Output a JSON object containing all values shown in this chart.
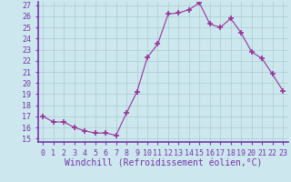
{
  "hours": [
    0,
    1,
    2,
    3,
    4,
    5,
    6,
    7,
    8,
    9,
    10,
    11,
    12,
    13,
    14,
    15,
    16,
    17,
    18,
    19,
    20,
    21,
    22,
    23
  ],
  "values": [
    17.0,
    16.5,
    16.5,
    16.0,
    15.7,
    15.5,
    15.5,
    15.3,
    17.3,
    19.2,
    22.3,
    23.5,
    26.2,
    26.3,
    26.6,
    27.2,
    25.3,
    25.0,
    25.8,
    24.5,
    22.8,
    22.2,
    20.8,
    19.3
  ],
  "line_color": "#993399",
  "marker": "+",
  "marker_size": 4,
  "bg_color": "#cce8ee",
  "grid_color": "#aacccc",
  "xlabel": "Windchill (Refroidissement éolien,°C)",
  "ylim_min": 15,
  "ylim_max": 27,
  "xlim_min": 0,
  "xlim_max": 23,
  "yticks": [
    15,
    16,
    17,
    18,
    19,
    20,
    21,
    22,
    23,
    24,
    25,
    26,
    27
  ],
  "xticks": [
    0,
    1,
    2,
    3,
    4,
    5,
    6,
    7,
    8,
    9,
    10,
    11,
    12,
    13,
    14,
    15,
    16,
    17,
    18,
    19,
    20,
    21,
    22,
    23
  ],
  "xtick_labels": [
    "0",
    "1",
    "2",
    "3",
    "4",
    "5",
    "6",
    "7",
    "8",
    "9",
    "10",
    "11",
    "12",
    "13",
    "14",
    "15",
    "16",
    "17",
    "18",
    "19",
    "20",
    "21",
    "22",
    "23"
  ],
  "tick_fontsize": 6,
  "xlabel_fontsize": 7,
  "tick_color": "#7733aa",
  "label_color": "#7733aa"
}
